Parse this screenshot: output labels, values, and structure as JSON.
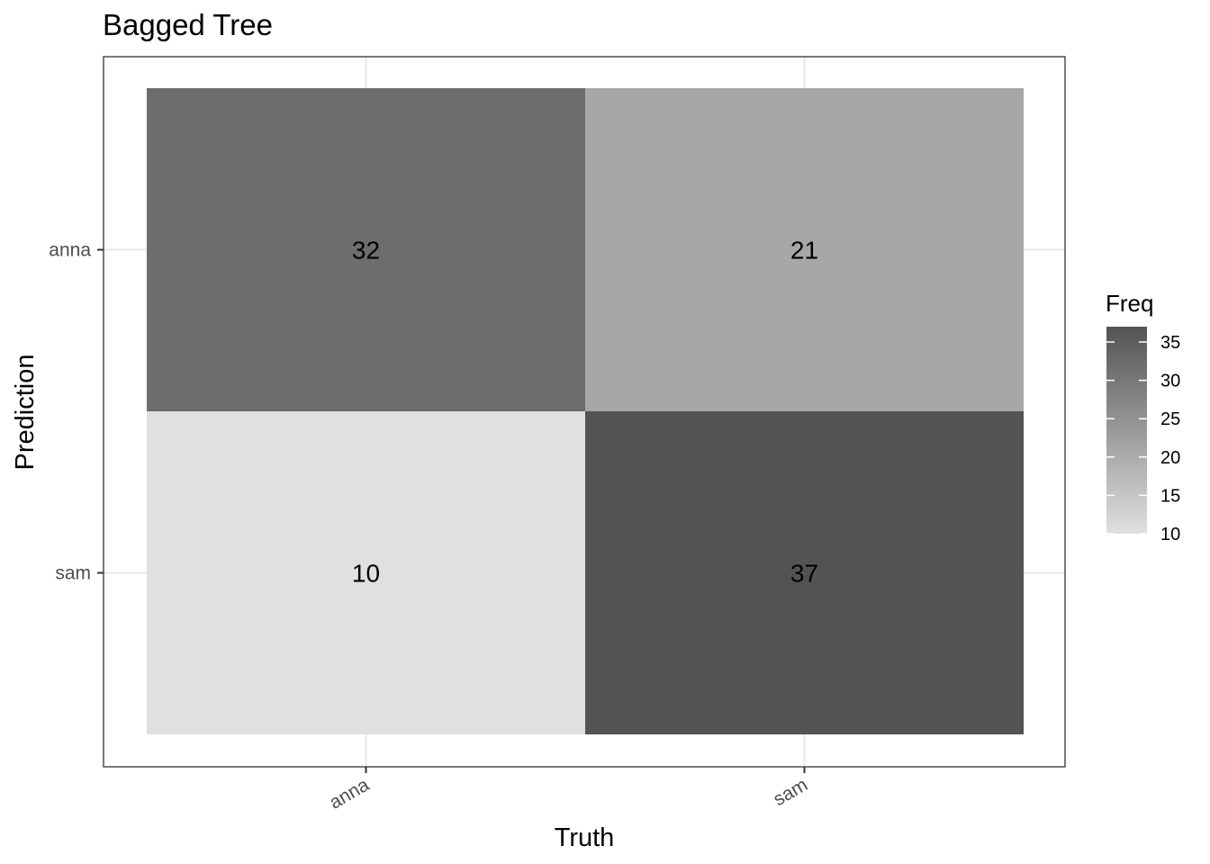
{
  "chart_data": {
    "type": "heatmap",
    "title": "Bagged Tree",
    "xlabel": "Truth",
    "ylabel": "Prediction",
    "x_categories": [
      "anna",
      "sam"
    ],
    "y_categories": [
      "anna",
      "sam"
    ],
    "cells": [
      {
        "truth": "anna",
        "prediction": "anna",
        "value": 32
      },
      {
        "truth": "sam",
        "prediction": "anna",
        "value": 21
      },
      {
        "truth": "anna",
        "prediction": "sam",
        "value": 10
      },
      {
        "truth": "sam",
        "prediction": "sam",
        "value": 37
      }
    ],
    "legend": {
      "title": "Freq",
      "placement": "right",
      "range": [
        10,
        37
      ],
      "ticks": [
        10,
        15,
        20,
        25,
        30,
        35
      ],
      "low_color": "#e0e0e0",
      "high_color": "#535353"
    },
    "grid": true
  }
}
